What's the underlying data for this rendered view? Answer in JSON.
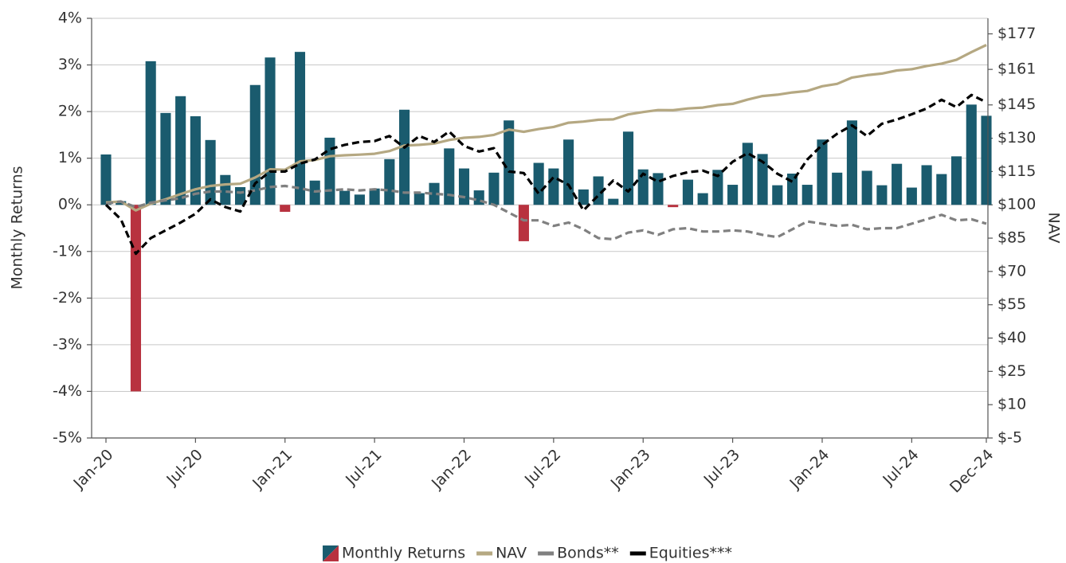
{
  "chart_data": {
    "type": "bar_line",
    "y_axis_label": "Monthly Returns",
    "y2_axis_label": "NAV",
    "categories": [
      "Jan-20",
      null,
      null,
      null,
      null,
      null,
      "Jul-20",
      null,
      null,
      null,
      null,
      null,
      "Jan-21",
      null,
      null,
      null,
      null,
      null,
      "Jul-21",
      null,
      null,
      null,
      null,
      null,
      "Jan-22",
      null,
      null,
      null,
      null,
      null,
      "Jul-22",
      null,
      null,
      null,
      null,
      null,
      "Jan-23",
      null,
      null,
      null,
      null,
      null,
      "Jul-23",
      null,
      null,
      null,
      null,
      null,
      "Jan-24",
      null,
      null,
      null,
      null,
      null,
      "Jul-24",
      null,
      null,
      null,
      null,
      "Dec-24"
    ],
    "ylim": [
      -5,
      4
    ],
    "yticks": [
      {
        "value": 4,
        "label": "4%"
      },
      {
        "value": 3,
        "label": "3%"
      },
      {
        "value": 2,
        "label": "2%"
      },
      {
        "value": 1,
        "label": "1%"
      },
      {
        "value": 0,
        "label": "0%"
      },
      {
        "value": -1,
        "label": "-1%"
      },
      {
        "value": -2,
        "label": "-2%"
      },
      {
        "value": -3,
        "label": "-3%"
      },
      {
        "value": -4,
        "label": "-4%"
      },
      {
        "value": -5,
        "label": "-5%"
      }
    ],
    "y2lim": [
      -5,
      184
    ],
    "y2ticks": [
      {
        "value": 177,
        "label": "$177"
      },
      {
        "value": 161,
        "label": "$161"
      },
      {
        "value": 145,
        "label": "$145"
      },
      {
        "value": 130,
        "label": "$130"
      },
      {
        "value": 115,
        "label": "$115"
      },
      {
        "value": 100,
        "label": "$100"
      },
      {
        "value": 85,
        "label": "$85"
      },
      {
        "value": 70,
        "label": "$70"
      },
      {
        "value": 55,
        "label": "$55"
      },
      {
        "value": 40,
        "label": "$40"
      },
      {
        "value": 25,
        "label": "$25"
      },
      {
        "value": 10,
        "label": "$10"
      },
      {
        "value": -5,
        "label": "$-5"
      }
    ],
    "grid": true,
    "legend": "bottom",
    "series": [
      {
        "name": "Monthly Returns",
        "kind": "bar",
        "color": "#1a5b6e",
        "negative_color": "#b8323f",
        "values": [
          1.08,
          0.08,
          -4.0,
          3.08,
          1.97,
          2.33,
          1.9,
          1.39,
          0.64,
          0.38,
          2.57,
          3.16,
          -0.15,
          3.28,
          0.52,
          1.44,
          0.3,
          0.22,
          0.35,
          0.98,
          2.04,
          0.25,
          0.47,
          1.21,
          0.78,
          0.31,
          0.69,
          1.81,
          -0.78,
          0.9,
          0.78,
          1.4,
          0.33,
          0.61,
          0.13,
          1.57,
          0.76,
          0.68,
          -0.05,
          0.54,
          0.25,
          0.75,
          0.43,
          1.33,
          1.09,
          0.42,
          0.67,
          0.43,
          1.4,
          0.69,
          1.81,
          0.73,
          0.42,
          0.88,
          0.37,
          0.85,
          0.66,
          1.04,
          2.15,
          1.91
        ]
      },
      {
        "name": "NAV",
        "kind": "line",
        "axis": "y2",
        "color": "#b5a882",
        "style": "solid",
        "values": [
          101,
          101.5,
          97.5,
          100.5,
          102.5,
          104.8,
          107,
          108.5,
          109.2,
          109.5,
          112.3,
          116,
          115.8,
          119.6,
          120.2,
          121.9,
          122.3,
          122.6,
          123,
          124.2,
          126.7,
          127,
          127.6,
          129.2,
          130.2,
          130.6,
          131.5,
          133.9,
          132.9,
          134.1,
          135.1,
          137,
          137.5,
          138.3,
          138.5,
          140.7,
          141.8,
          142.7,
          142.6,
          143.4,
          143.8,
          144.9,
          145.5,
          147.4,
          149,
          149.6,
          150.6,
          151.3,
          153.4,
          154.5,
          157.3,
          158.4,
          159.1,
          160.5,
          161.1,
          162.5,
          163.6,
          165.3,
          168.8,
          172
        ]
      },
      {
        "name": "Bonds**",
        "kind": "line",
        "axis": "y2",
        "color": "#808080",
        "style": "dashed",
        "values": [
          100.5,
          101.5,
          99,
          101,
          102,
          103,
          105,
          106,
          106,
          105.5,
          106.5,
          108,
          108.5,
          107.5,
          106,
          106.5,
          107,
          106.5,
          107,
          106.5,
          105.5,
          105.5,
          105,
          104.5,
          103.5,
          102,
          100,
          96.5,
          93,
          93,
          90.5,
          92,
          89,
          85,
          84.5,
          87.5,
          88.5,
          86.5,
          89,
          89.5,
          88,
          88,
          88.5,
          88,
          86.5,
          85.5,
          89,
          92.5,
          91.5,
          90.5,
          91,
          89,
          89.5,
          89.5,
          91.5,
          93.5,
          95.5,
          93,
          93.5,
          91.5
        ]
      },
      {
        "name": "Equities***",
        "kind": "line",
        "axis": "y2",
        "color": "#000000",
        "style": "dashed",
        "values": [
          100,
          93.5,
          78,
          85,
          88.5,
          92,
          96,
          102.5,
          99,
          97,
          109.7,
          115,
          115,
          118.6,
          120.4,
          125,
          127,
          128.3,
          128.7,
          131,
          125.8,
          131,
          128.3,
          133,
          126.5,
          124,
          125.5,
          115,
          114.3,
          105,
          112.5,
          109,
          97.5,
          104.3,
          111,
          106,
          114,
          110.4,
          113,
          114.7,
          115.4,
          113,
          119.4,
          123.3,
          119.4,
          114,
          110.4,
          120.4,
          127,
          132,
          135.8,
          131,
          136.5,
          138.4,
          140.8,
          143.4,
          147.3,
          144,
          149.5,
          146.2
        ]
      }
    ]
  }
}
